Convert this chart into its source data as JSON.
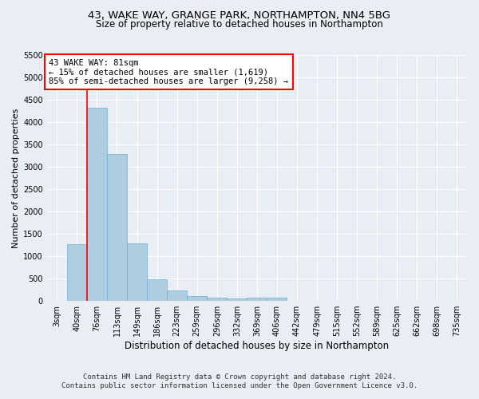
{
  "title": "43, WAKE WAY, GRANGE PARK, NORTHAMPTON, NN4 5BG",
  "subtitle": "Size of property relative to detached houses in Northampton",
  "xlabel": "Distribution of detached houses by size in Northampton",
  "ylabel": "Number of detached properties",
  "footer_line1": "Contains HM Land Registry data © Crown copyright and database right 2024.",
  "footer_line2": "Contains public sector information licensed under the Open Government Licence v3.0.",
  "annotation_line1": "43 WAKE WAY: 81sqm",
  "annotation_line2": "← 15% of detached houses are smaller (1,619)",
  "annotation_line3": "85% of semi-detached houses are larger (9,258) →",
  "bar_labels": [
    "3sqm",
    "40sqm",
    "76sqm",
    "113sqm",
    "149sqm",
    "186sqm",
    "223sqm",
    "259sqm",
    "296sqm",
    "332sqm",
    "369sqm",
    "406sqm",
    "442sqm",
    "479sqm",
    "515sqm",
    "552sqm",
    "589sqm",
    "625sqm",
    "662sqm",
    "698sqm",
    "735sqm"
  ],
  "bar_values": [
    0,
    1270,
    4330,
    3290,
    1290,
    480,
    230,
    100,
    70,
    60,
    70,
    65,
    0,
    0,
    0,
    0,
    0,
    0,
    0,
    0,
    0
  ],
  "bar_color": "#aecde1",
  "bar_edge_color": "#6aaed6",
  "red_line_x": 1.5,
  "ylim": [
    0,
    5500
  ],
  "yticks": [
    0,
    500,
    1000,
    1500,
    2000,
    2500,
    3000,
    3500,
    4000,
    4500,
    5000,
    5500
  ],
  "bg_color": "#e8eef4",
  "plot_bg_color": "#e8eef4",
  "grid_color": "#ffffff",
  "title_fontsize": 9.5,
  "subtitle_fontsize": 8.5,
  "xlabel_fontsize": 8.5,
  "ylabel_fontsize": 8,
  "tick_fontsize": 7,
  "footer_fontsize": 6.5,
  "annotation_fontsize": 7.5
}
